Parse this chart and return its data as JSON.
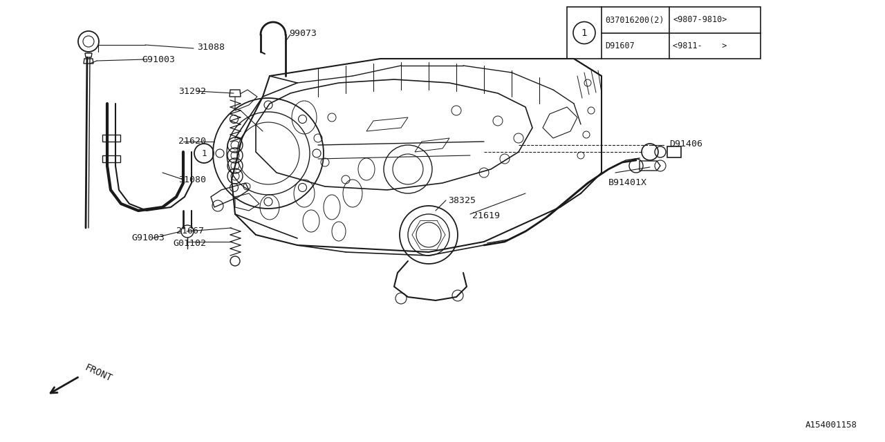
{
  "bg_color": "#ffffff",
  "line_color": "#1a1a1a",
  "watermark": "A154001158",
  "table": {
    "row1_col1": "037016200(2)",
    "row1_col2": "<9807-9810>",
    "row2_col1": "D91607",
    "row2_col2": "<9811-    >"
  },
  "figsize": [
    12.8,
    6.4
  ],
  "dpi": 100
}
